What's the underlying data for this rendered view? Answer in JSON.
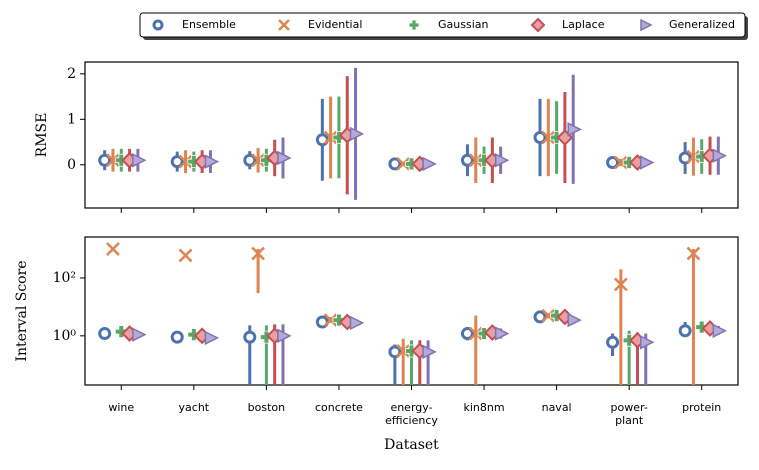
{
  "chart_data": [
    {
      "type": "errorbar",
      "ylabel": "RMSE",
      "ylim": [
        -0.95,
        2.26
      ],
      "yticks": [
        0,
        1,
        2
      ],
      "log": false,
      "series": [
        {
          "name": "Ensemble",
          "color": "#4c72b0",
          "marker": "o",
          "values": [
            0.1,
            0.07,
            0.1,
            0.55,
            0.02,
            0.1,
            0.6,
            0.05,
            0.15
          ],
          "errors": [
            0.22,
            0.22,
            0.2,
            0.9,
            0.05,
            0.35,
            0.85,
            0.08,
            0.35
          ]
        },
        {
          "name": "Evidential",
          "color": "#dd8452",
          "marker": "x",
          "values": [
            0.1,
            0.07,
            0.1,
            0.6,
            0.02,
            0.1,
            0.6,
            0.05,
            0.18
          ],
          "errors": [
            0.25,
            0.25,
            0.27,
            0.9,
            0.05,
            0.5,
            0.85,
            0.08,
            0.42
          ]
        },
        {
          "name": "Gaussian",
          "color": "#55a868",
          "marker": "P",
          "values": [
            0.1,
            0.07,
            0.1,
            0.6,
            0.02,
            0.1,
            0.6,
            0.05,
            0.18
          ],
          "errors": [
            0.25,
            0.22,
            0.25,
            0.9,
            0.05,
            0.3,
            0.8,
            0.08,
            0.38
          ]
        },
        {
          "name": "Laplace",
          "color": "#c44e52",
          "marker": "D",
          "values": [
            0.1,
            0.07,
            0.15,
            0.65,
            0.02,
            0.1,
            0.6,
            0.05,
            0.2
          ],
          "errors": [
            0.25,
            0.25,
            0.4,
            1.3,
            0.05,
            0.5,
            1.0,
            0.08,
            0.42
          ]
        },
        {
          "name": "Generalized",
          "color": "#8172b3",
          "marker": ">",
          "values": [
            0.1,
            0.07,
            0.15,
            0.68,
            0.02,
            0.1,
            0.78,
            0.05,
            0.2
          ],
          "errors": [
            0.25,
            0.25,
            0.45,
            1.45,
            0.05,
            0.3,
            1.2,
            0.08,
            0.42
          ]
        }
      ]
    },
    {
      "type": "errorbar",
      "ylabel": "Interval Score",
      "xlabel": "Dataset",
      "ylim": [
        0.02,
        2600
      ],
      "log": true,
      "yticks": [
        {
          "value": 1,
          "label": "10⁰"
        },
        {
          "value": 100,
          "label": "10²"
        }
      ],
      "categories": [
        "wine",
        "yacht",
        "boston",
        "concrete",
        "energy-\nefficiency",
        "kin8nm",
        "naval",
        "power-\nplant",
        "protein"
      ],
      "series": [
        {
          "color": "#4c72b0",
          "marker": "o",
          "values": [
            1.2,
            0.9,
            0.9,
            3,
            0.28,
            1.2,
            4.5,
            0.6,
            1.5
          ],
          "low": [
            1,
            0.75,
            0.01,
            2.3,
            0.01,
            0.7,
            3.5,
            0.2,
            1
          ],
          "high": [
            1.5,
            1.1,
            2.3,
            4,
            0.5,
            2,
            6,
            1.2,
            3
          ]
        },
        {
          "color": "#dd8452",
          "marker": "x",
          "values": [
            1000,
            600,
            700,
            3.5,
            0.3,
            1.2,
            5,
            60,
            700
          ],
          "low": [
            900,
            550,
            30,
            2.8,
            0.01,
            0.01,
            4,
            0.01,
            0.01
          ],
          "high": [
            1100,
            650,
            1000,
            4.5,
            0.8,
            5,
            6,
            200,
            1000
          ]
        },
        {
          "color": "#55a868",
          "marker": "P",
          "values": [
            1.4,
            1.1,
            0.9,
            3.5,
            0.3,
            1.2,
            5,
            0.7,
            2
          ],
          "low": [
            1.1,
            0.9,
            0.01,
            2.8,
            0.01,
            0.8,
            4,
            0.01,
            1.5
          ],
          "high": [
            1.8,
            1.4,
            2.3,
            4.5,
            0.7,
            1.8,
            6,
            1.5,
            2.8
          ]
        },
        {
          "color": "#c44e52",
          "marker": "D",
          "values": [
            1.2,
            1,
            1,
            3,
            0.3,
            1.3,
            4.5,
            0.7,
            1.8
          ],
          "low": [
            1,
            0.8,
            0.01,
            2.4,
            0.01,
            0.8,
            3.5,
            0.01,
            1.2
          ],
          "high": [
            1.5,
            1.3,
            2.5,
            4,
            0.7,
            2,
            6,
            1.3,
            2.5
          ]
        },
        {
          "color": "#8172b3",
          "marker": ">",
          "values": [
            1.1,
            0.85,
            1,
            2.8,
            0.28,
            1.2,
            3.5,
            0.6,
            1.5
          ],
          "low": [
            0.9,
            0.7,
            0.01,
            2.2,
            0.01,
            0.8,
            2.8,
            0.01,
            1.1
          ],
          "high": [
            1.4,
            1.1,
            2.5,
            3.8,
            0.7,
            1.8,
            4.5,
            1.2,
            2.2
          ]
        }
      ]
    }
  ]
}
